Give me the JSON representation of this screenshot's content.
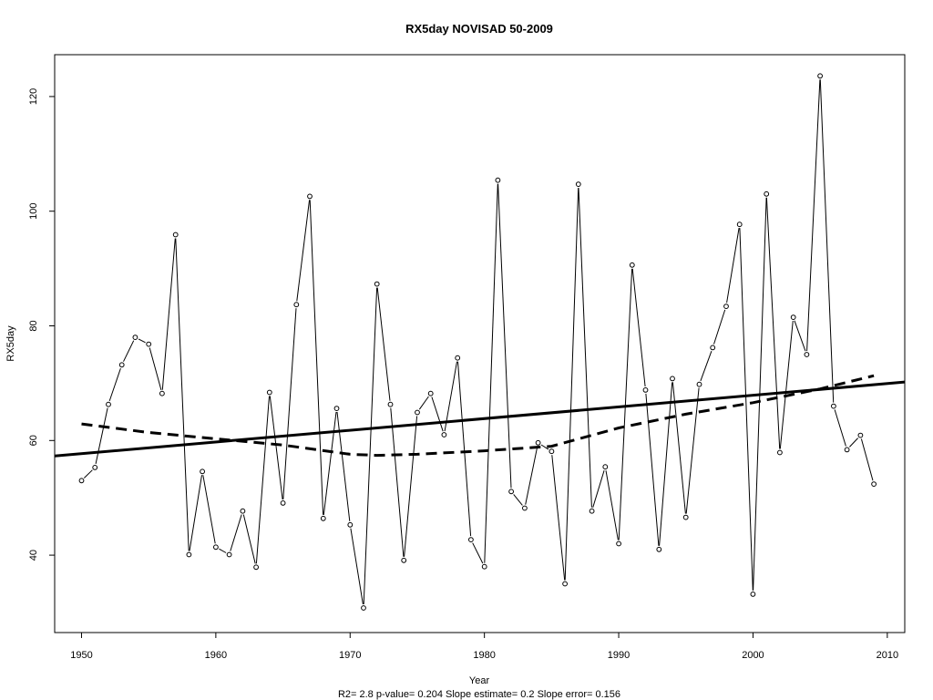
{
  "chart_data": {
    "type": "line",
    "title": "RX5day   NOVISAD 50-2009",
    "xlabel": "Year",
    "ylabel": "RX5day",
    "footer": "R2= 2.8  p-value= 0.204  Slope estimate= 0.2  Slope error= 0.156",
    "xlim": [
      1948,
      2011.3
    ],
    "ylim": [
      26.5,
      127.3
    ],
    "xticks": [
      1950,
      1960,
      1970,
      1980,
      1990,
      2000,
      2010
    ],
    "yticks": [
      40,
      60,
      80,
      100,
      120
    ],
    "grid": false,
    "x": [
      1950,
      1951,
      1952,
      1953,
      1954,
      1955,
      1956,
      1957,
      1958,
      1959,
      1960,
      1961,
      1962,
      1963,
      1964,
      1965,
      1966,
      1967,
      1968,
      1969,
      1970,
      1971,
      1972,
      1973,
      1974,
      1975,
      1976,
      1977,
      1978,
      1979,
      1980,
      1981,
      1982,
      1983,
      1984,
      1985,
      1986,
      1987,
      1988,
      1989,
      1990,
      1991,
      1992,
      1993,
      1994,
      1995,
      1996,
      1997,
      1998,
      1999,
      2000,
      2001,
      2002,
      2003,
      2004,
      2005,
      2006,
      2007,
      2008,
      2009
    ],
    "series": [
      {
        "style": "line-with-points",
        "values": [
          53.0,
          55.3,
          66.3,
          73.2,
          78.0,
          76.8,
          68.2,
          95.9,
          40.1,
          54.6,
          41.4,
          40.1,
          47.7,
          37.9,
          68.4,
          49.1,
          83.7,
          102.6,
          46.4,
          65.6,
          45.3,
          30.8,
          87.3,
          66.3,
          39.1,
          64.9,
          68.2,
          61.0,
          74.4,
          42.7,
          38.0,
          105.4,
          51.1,
          48.2,
          59.6,
          58.1,
          35.0,
          104.7,
          47.7,
          55.4,
          42.0,
          90.6,
          68.8,
          41.0,
          70.8,
          46.6,
          69.8,
          76.2,
          83.4,
          97.7,
          33.2,
          103.0,
          57.9,
          81.5,
          75.0,
          123.6,
          66.0,
          58.4,
          60.9,
          52.4
        ]
      },
      {
        "style": "linear-trend",
        "points": [
          [
            1948,
            57.3
          ],
          [
            2011.3,
            70.2
          ]
        ]
      },
      {
        "style": "dashed-smooth",
        "points": [
          [
            1950,
            62.9
          ],
          [
            1955,
            61.4
          ],
          [
            1960,
            60.3
          ],
          [
            1965,
            59.2
          ],
          [
            1970,
            57.6
          ],
          [
            1972,
            57.4
          ],
          [
            1975,
            57.6
          ],
          [
            1980,
            58.2
          ],
          [
            1985,
            59.0
          ],
          [
            1990,
            62.2
          ],
          [
            1995,
            64.6
          ],
          [
            2000,
            66.6
          ],
          [
            2005,
            69.0
          ],
          [
            2009,
            71.3
          ]
        ]
      }
    ]
  }
}
